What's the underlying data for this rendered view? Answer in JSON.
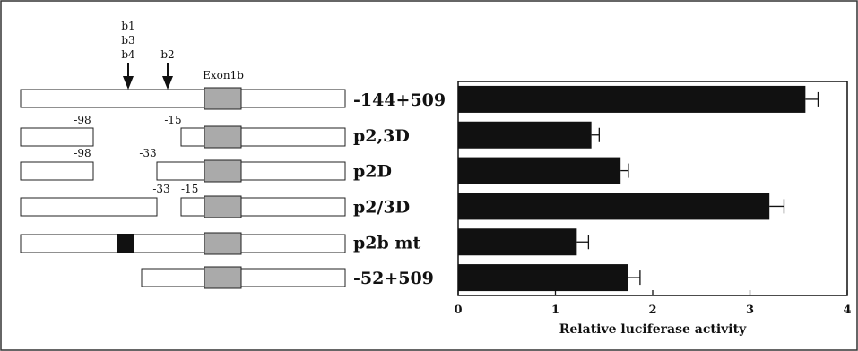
{
  "site_labels": {
    "b1": "b1",
    "b3": "b3",
    "b4": "b4",
    "b2": "b2",
    "exon": "Exon1b"
  },
  "position_labels": {
    "r1_a": "-98",
    "r1_b": "-15",
    "r2_a": "-98",
    "r2_b": "-33",
    "r3_a": "-33",
    "r3_b": "-15"
  },
  "chart_data": {
    "type": "bar",
    "orientation": "horizontal",
    "categories": [
      "-144+509",
      "p2,3D",
      "p2D",
      "p2/3D",
      "p2b mt",
      "-52+509"
    ],
    "values": [
      3.57,
      1.37,
      1.67,
      3.2,
      1.22,
      1.75
    ],
    "errors": [
      0.13,
      0.08,
      0.08,
      0.15,
      0.12,
      0.12
    ],
    "xlabel": "Relative luciferase activity",
    "xlim": [
      0,
      4
    ],
    "ticks": [
      "0",
      "1",
      "2",
      "3",
      "4"
    ],
    "bar_color": "#111111",
    "grid": false
  }
}
